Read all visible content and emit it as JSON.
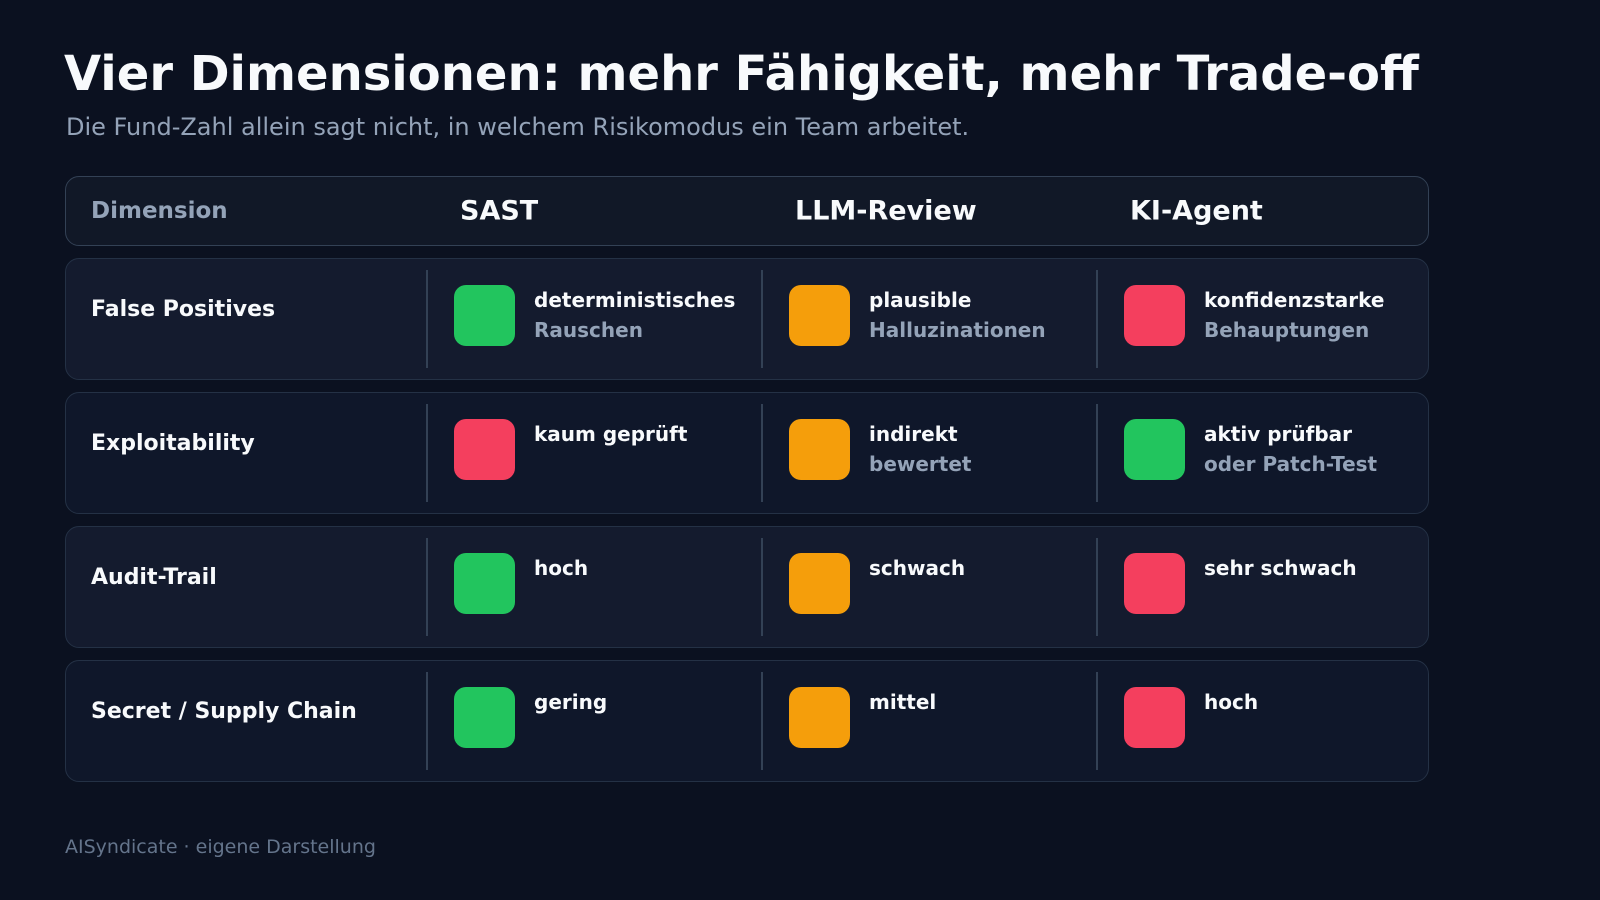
{
  "title": "Vier Dimensionen: mehr Fähigkeit, mehr Trade-off",
  "subtitle": "Die Fund-Zahl allein sagt nicht, in welchem Risikomodus ein Team arbeitet.",
  "colors": {
    "green": "#22c55e",
    "orange": "#f59e0b",
    "red": "#f43f5e"
  },
  "header": {
    "dimension": "Dimension",
    "columns": [
      "SAST",
      "LLM-Review",
      "KI-Agent"
    ]
  },
  "rows": [
    {
      "label": "False Positives",
      "cells": [
        {
          "color": "green",
          "line1": "deterministisches",
          "line2": "Rauschen"
        },
        {
          "color": "orange",
          "line1": "plausible",
          "line2": "Halluzinationen"
        },
        {
          "color": "red",
          "line1": "konfidenzstarke",
          "line2": "Behauptungen"
        }
      ]
    },
    {
      "label": "Exploitability",
      "cells": [
        {
          "color": "red",
          "line1": "kaum geprüft",
          "line2": ""
        },
        {
          "color": "orange",
          "line1": "indirekt",
          "line2": "bewertet"
        },
        {
          "color": "green",
          "line1": "aktiv prüfbar",
          "line2": "oder Patch-Test"
        }
      ]
    },
    {
      "label": "Audit-Trail",
      "cells": [
        {
          "color": "green",
          "line1": "hoch",
          "line2": ""
        },
        {
          "color": "orange",
          "line1": "schwach",
          "line2": ""
        },
        {
          "color": "red",
          "line1": "sehr schwach",
          "line2": ""
        }
      ]
    },
    {
      "label": "Secret / Supply Chain",
      "cells": [
        {
          "color": "green",
          "line1": "gering",
          "line2": ""
        },
        {
          "color": "orange",
          "line1": "mittel",
          "line2": ""
        },
        {
          "color": "red",
          "line1": "hoch",
          "line2": ""
        }
      ]
    }
  ],
  "footer": "AISyndicate · eigene Darstellung"
}
